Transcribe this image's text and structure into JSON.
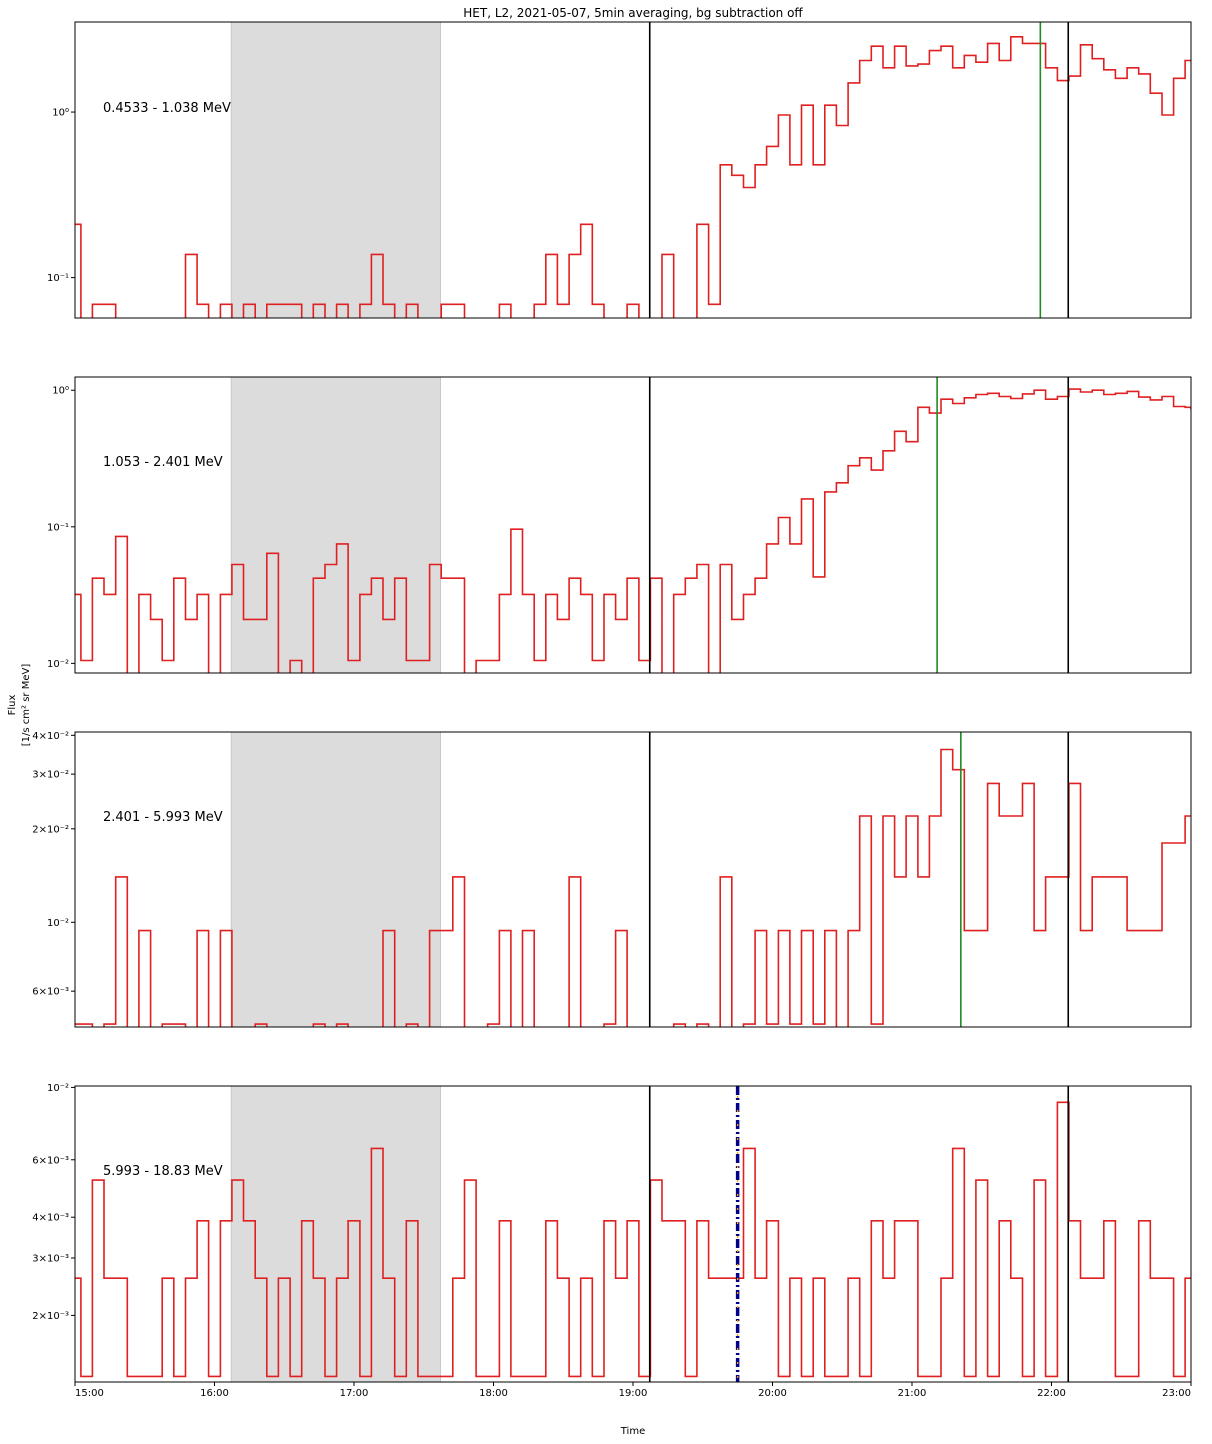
{
  "chart_data": {
    "type": "line",
    "title": "HET, L2, 2021-05-07, 5min averaging, bg subtraction off",
    "xlabel": "Time",
    "ylabel_line1": "Flux",
    "ylabel_line2": "[1/s cm² sr MeV]",
    "x_range": [
      15.0,
      23.0
    ],
    "x_ticks": [
      15,
      16,
      17,
      18,
      19,
      20,
      21,
      22,
      23
    ],
    "x_tick_labels": [
      "15:00",
      "16:00",
      "17:00",
      "18:00",
      "19:00",
      "20:00",
      "21:00",
      "22:00",
      "23:00"
    ],
    "series_color": "#e02020",
    "shade_color": "#dcdcdc",
    "black_line_color": "#000000",
    "green_line_color": "#228b22",
    "panels": [
      {
        "energy_label": "0.4533 - 1.038 MeV",
        "scale": "log",
        "ylim": [
          0.057,
          3.5
        ],
        "y_ticks": [
          {
            "value": 0.1,
            "label": "10⁻¹"
          },
          {
            "value": 1.0,
            "label": "10⁰"
          }
        ],
        "shaded_interval": [
          16.12,
          17.62
        ],
        "black_lines": [
          19.12,
          22.12
        ],
        "green_lines": [
          21.92
        ],
        "step_x": [
          15.0,
          15.042,
          15.125,
          15.292,
          15.792,
          15.875,
          15.958,
          16.042,
          16.125,
          16.208,
          16.292,
          16.375,
          16.625,
          16.708,
          16.792,
          16.875,
          16.958,
          17.042,
          17.125,
          17.208,
          17.292,
          17.375,
          17.458,
          17.625,
          17.792,
          18.042,
          18.125,
          18.292,
          18.375,
          18.458,
          18.542,
          18.625,
          18.708,
          18.792,
          18.958,
          19.042,
          19.208,
          19.292,
          19.458,
          19.542,
          19.625,
          19.708,
          19.792,
          19.875,
          19.958,
          20.042,
          20.125,
          20.208,
          20.292,
          20.375,
          20.458,
          20.542,
          20.625,
          20.708,
          20.792,
          20.875,
          20.958,
          21.042,
          21.125,
          21.208,
          21.292,
          21.375,
          21.458,
          21.542,
          21.625,
          21.708,
          21.792,
          21.958,
          22.042,
          22.125,
          22.208,
          22.292,
          22.375,
          22.458,
          22.542,
          22.625,
          22.708,
          22.792,
          22.875,
          22.958,
          23.0
        ],
        "step_y": [
          0.21,
          0.04,
          0.069,
          0.04,
          0.138,
          0.069,
          0.04,
          0.069,
          0.04,
          0.069,
          0.04,
          0.069,
          0.04,
          0.069,
          0.04,
          0.069,
          0.04,
          0.069,
          0.138,
          0.069,
          0.04,
          0.069,
          0.04,
          0.069,
          0.04,
          0.069,
          0.04,
          0.069,
          0.138,
          0.069,
          0.138,
          0.21,
          0.069,
          0.04,
          0.069,
          0.04,
          0.138,
          0.04,
          0.21,
          0.069,
          0.48,
          0.415,
          0.35,
          0.48,
          0.62,
          0.96,
          0.48,
          1.1,
          0.48,
          1.1,
          0.83,
          1.5,
          2.05,
          2.5,
          1.85,
          2.5,
          1.9,
          1.95,
          2.35,
          2.5,
          1.85,
          2.2,
          2.0,
          2.6,
          2.05,
          2.85,
          2.6,
          1.85,
          1.55,
          1.65,
          2.55,
          2.1,
          1.8,
          1.6,
          1.85,
          1.7,
          1.3,
          0.96,
          1.6,
          2.05,
          2.05
        ]
      },
      {
        "energy_label": "1.053 - 2.401 MeV",
        "scale": "log",
        "ylim": [
          0.0085,
          1.25
        ],
        "y_ticks": [
          {
            "value": 0.01,
            "label": "10⁻²"
          },
          {
            "value": 0.1,
            "label": "10⁻¹"
          },
          {
            "value": 1.0,
            "label": "10⁰"
          }
        ],
        "shaded_interval": [
          16.12,
          17.62
        ],
        "black_lines": [
          19.12,
          22.12
        ],
        "green_lines": [
          21.18
        ],
        "step_x": [
          15.0,
          15.042,
          15.125,
          15.208,
          15.292,
          15.375,
          15.458,
          15.542,
          15.625,
          15.708,
          15.792,
          15.875,
          15.958,
          16.042,
          16.125,
          16.208,
          16.375,
          16.458,
          16.542,
          16.625,
          16.708,
          16.792,
          16.875,
          16.958,
          17.042,
          17.125,
          17.208,
          17.292,
          17.375,
          17.542,
          17.625,
          17.792,
          17.875,
          18.042,
          18.125,
          18.208,
          18.292,
          18.375,
          18.458,
          18.542,
          18.625,
          18.708,
          18.792,
          18.875,
          18.958,
          19.042,
          19.125,
          19.208,
          19.292,
          19.375,
          19.458,
          19.542,
          19.625,
          19.708,
          19.792,
          19.875,
          19.958,
          20.042,
          20.125,
          20.208,
          20.292,
          20.375,
          20.458,
          20.542,
          20.625,
          20.708,
          20.792,
          20.875,
          20.958,
          21.042,
          21.125,
          21.208,
          21.292,
          21.375,
          21.458,
          21.542,
          21.625,
          21.708,
          21.792,
          21.875,
          21.958,
          22.042,
          22.125,
          22.208,
          22.292,
          22.375,
          22.458,
          22.542,
          22.625,
          22.708,
          22.792,
          22.875,
          22.958,
          23.0
        ],
        "step_y": [
          0.032,
          0.0105,
          0.042,
          0.032,
          0.085,
          0.008,
          0.032,
          0.021,
          0.0105,
          0.042,
          0.021,
          0.032,
          0.008,
          0.032,
          0.053,
          0.021,
          0.064,
          0.008,
          0.0105,
          0.008,
          0.042,
          0.053,
          0.075,
          0.0105,
          0.032,
          0.042,
          0.021,
          0.042,
          0.0105,
          0.053,
          0.042,
          0.008,
          0.0105,
          0.032,
          0.096,
          0.032,
          0.0105,
          0.032,
          0.021,
          0.042,
          0.032,
          0.0105,
          0.032,
          0.021,
          0.042,
          0.0105,
          0.042,
          0.008,
          0.032,
          0.042,
          0.053,
          0.008,
          0.053,
          0.021,
          0.032,
          0.042,
          0.075,
          0.117,
          0.075,
          0.16,
          0.043,
          0.18,
          0.21,
          0.28,
          0.32,
          0.26,
          0.36,
          0.5,
          0.42,
          0.75,
          0.68,
          0.86,
          0.8,
          0.88,
          0.93,
          0.95,
          0.9,
          0.87,
          0.94,
          1.0,
          0.86,
          0.9,
          1.02,
          0.97,
          1.0,
          0.93,
          0.95,
          0.98,
          0.89,
          0.85,
          0.9,
          0.76,
          0.75,
          0.72,
          0.68,
          0.6,
          0.56,
          0.6
        ]
      },
      {
        "energy_label": "2.401 - 5.993 MeV",
        "scale": "log",
        "ylim": [
          0.0046,
          0.041
        ],
        "y_ticks": [
          {
            "value": 0.006,
            "label": "6×10⁻³"
          },
          {
            "value": 0.01,
            "label": "10⁻²"
          },
          {
            "value": 0.02,
            "label": "2×10⁻²"
          },
          {
            "value": 0.03,
            "label": "3×10⁻²"
          },
          {
            "value": 0.04,
            "label": "4×10⁻²"
          }
        ],
        "shaded_interval": [
          16.12,
          17.62
        ],
        "black_lines": [
          19.12,
          22.12
        ],
        "green_lines": [
          21.35
        ],
        "step_x": [
          15.0,
          15.125,
          15.208,
          15.292,
          15.375,
          15.458,
          15.542,
          15.625,
          15.792,
          15.875,
          15.958,
          16.042,
          16.125,
          16.208,
          16.292,
          16.375,
          16.458,
          16.542,
          16.625,
          16.708,
          16.792,
          16.875,
          16.958,
          17.042,
          17.125,
          17.208,
          17.292,
          17.375,
          17.458,
          17.542,
          17.625,
          17.708,
          17.792,
          17.875,
          17.958,
          18.042,
          18.125,
          18.208,
          18.292,
          18.375,
          18.458,
          18.542,
          18.625,
          18.708,
          18.792,
          18.875,
          18.958,
          19.042,
          19.125,
          19.208,
          19.292,
          19.375,
          19.458,
          19.542,
          19.625,
          19.708,
          19.792,
          19.875,
          19.958,
          20.042,
          20.125,
          20.208,
          20.292,
          20.375,
          20.458,
          20.542,
          20.625,
          20.708,
          20.792,
          20.875,
          20.958,
          21.042,
          21.125,
          21.208,
          21.292,
          21.375,
          21.458,
          21.542,
          21.625,
          21.708,
          21.792,
          21.875,
          21.958,
          22.042,
          22.125,
          22.208,
          22.292,
          22.375,
          22.458,
          22.542,
          22.625,
          22.708,
          22.792,
          22.875,
          22.958,
          23.0
        ],
        "step_y": [
          0.0047,
          0.0039,
          0.0047,
          0.014,
          0.0039,
          0.0094,
          0.0039,
          0.0047,
          0.0039,
          0.0094,
          0.0039,
          0.0094,
          0.0039,
          0.0039,
          0.0047,
          0.0039,
          0.0039,
          0.0039,
          0.0039,
          0.0047,
          0.0039,
          0.0047,
          0.0039,
          0.0039,
          0.0039,
          0.0094,
          0.0039,
          0.0047,
          0.0039,
          0.0094,
          0.0094,
          0.014,
          0.0039,
          0.0039,
          0.0047,
          0.0094,
          0.0039,
          0.0094,
          0.0039,
          0.0039,
          0.0039,
          0.014,
          0.0039,
          0.0039,
          0.0047,
          0.0094,
          0.0039,
          0.0039,
          0.0039,
          0.0039,
          0.0047,
          0.0039,
          0.0047,
          0.0039,
          0.014,
          0.0039,
          0.0047,
          0.0094,
          0.0047,
          0.0094,
          0.0047,
          0.0094,
          0.0047,
          0.0094,
          0.0039,
          0.0094,
          0.022,
          0.0047,
          0.022,
          0.014,
          0.022,
          0.014,
          0.022,
          0.036,
          0.031,
          0.0094,
          0.0094,
          0.028,
          0.022,
          0.022,
          0.028,
          0.0094,
          0.014,
          0.014,
          0.028,
          0.0094,
          0.014,
          0.014,
          0.014,
          0.0094,
          0.0094,
          0.0094,
          0.018,
          0.018,
          0.022,
          0.022
        ]
      },
      {
        "energy_label": "5.993 - 18.83 MeV",
        "scale": "log",
        "ylim": [
          0.00125,
          0.0101
        ],
        "y_ticks": [
          {
            "value": 0.002,
            "label": "2×10⁻³"
          },
          {
            "value": 0.003,
            "label": "3×10⁻³"
          },
          {
            "value": 0.004,
            "label": "4×10⁻³"
          },
          {
            "value": 0.006,
            "label": "6×10⁻³"
          },
          {
            "value": 0.01,
            "label": "10⁻²"
          }
        ],
        "shaded_interval": [
          16.12,
          17.62
        ],
        "black_lines": [
          19.12,
          22.12
        ],
        "green_lines": [],
        "dashdot_line": 19.75,
        "dashdot_colors": [
          "#00008b",
          "#ffa500"
        ],
        "step_x": [
          15.0,
          15.042,
          15.125,
          15.208,
          15.375,
          15.625,
          15.708,
          15.792,
          15.875,
          15.958,
          16.042,
          16.125,
          16.208,
          16.292,
          16.375,
          16.458,
          16.542,
          16.625,
          16.708,
          16.792,
          16.875,
          16.958,
          17.042,
          17.125,
          17.208,
          17.292,
          17.375,
          17.458,
          17.542,
          17.625,
          17.708,
          17.792,
          17.875,
          18.042,
          18.125,
          18.292,
          18.375,
          18.458,
          18.542,
          18.625,
          18.708,
          18.792,
          18.875,
          18.958,
          19.042,
          19.125,
          19.208,
          19.292,
          19.375,
          19.458,
          19.542,
          19.708,
          19.792,
          19.875,
          19.958,
          20.042,
          20.125,
          20.208,
          20.292,
          20.375,
          20.542,
          20.625,
          20.708,
          20.792,
          20.875,
          20.958,
          21.042,
          21.208,
          21.292,
          21.375,
          21.458,
          21.542,
          21.625,
          21.708,
          21.792,
          21.875,
          21.958,
          22.042,
          22.125,
          22.208,
          22.292,
          22.375,
          22.458,
          22.542,
          22.625,
          22.708,
          22.792,
          22.875,
          22.958,
          23.0
        ],
        "step_y": [
          0.0026,
          0.0013,
          0.0052,
          0.0026,
          0.0013,
          0.0026,
          0.0013,
          0.0026,
          0.0039,
          0.0013,
          0.0039,
          0.0052,
          0.0039,
          0.0026,
          0.0013,
          0.0026,
          0.0013,
          0.0039,
          0.0026,
          0.0013,
          0.0026,
          0.0039,
          0.0013,
          0.0065,
          0.0026,
          0.0013,
          0.0039,
          0.0013,
          0.0013,
          0.0013,
          0.0026,
          0.0052,
          0.0013,
          0.0039,
          0.0013,
          0.0013,
          0.0039,
          0.0026,
          0.0013,
          0.0026,
          0.0013,
          0.0039,
          0.0026,
          0.0039,
          0.0013,
          0.0052,
          0.0039,
          0.0039,
          0.0013,
          0.0039,
          0.0026,
          0.0026,
          0.0065,
          0.0026,
          0.0039,
          0.0013,
          0.0026,
          0.0013,
          0.0026,
          0.0013,
          0.0026,
          0.0013,
          0.0039,
          0.0026,
          0.0039,
          0.0039,
          0.0013,
          0.0026,
          0.0065,
          0.0013,
          0.0052,
          0.0013,
          0.0039,
          0.0026,
          0.0013,
          0.0052,
          0.0013,
          0.009,
          0.0039,
          0.0026,
          0.0026,
          0.0039,
          0.0013,
          0.0013,
          0.0039,
          0.0026,
          0.0026,
          0.0013,
          0.0026,
          0.0026
        ]
      }
    ]
  }
}
